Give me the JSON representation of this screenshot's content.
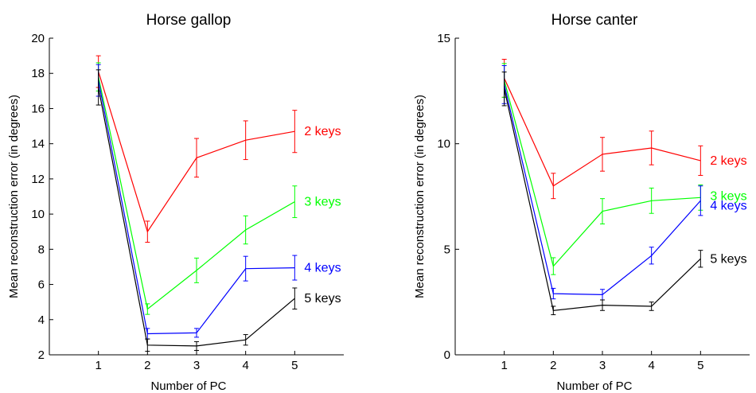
{
  "chart_data": [
    {
      "type": "line",
      "title": "Horse gallop",
      "xlabel": "Number of PC",
      "ylabel": "Mean reconstruction error (in degrees)",
      "x": [
        1,
        2,
        3,
        4,
        5
      ],
      "xlim": [
        0,
        6
      ],
      "ylim": [
        2,
        20
      ],
      "xticks": [
        "1",
        "2",
        "3",
        "4",
        "5"
      ],
      "yticks": [
        "2",
        "4",
        "6",
        "8",
        "10",
        "12",
        "14",
        "16",
        "18",
        "20"
      ],
      "ytick_values": [
        2,
        4,
        6,
        8,
        10,
        12,
        14,
        16,
        18,
        20
      ],
      "grid": false,
      "series": [
        {
          "name": "2 keys",
          "color": "#ff0000",
          "values": [
            18.1,
            9.0,
            13.2,
            14.2,
            14.7
          ],
          "err": [
            0.9,
            0.6,
            1.1,
            1.1,
            1.2
          ]
        },
        {
          "name": "3 keys",
          "color": "#00ff00",
          "values": [
            17.8,
            4.6,
            6.8,
            9.1,
            10.7
          ],
          "err": [
            0.8,
            0.3,
            0.7,
            0.8,
            0.9
          ]
        },
        {
          "name": "4 keys",
          "color": "#0000ff",
          "values": [
            17.6,
            3.2,
            3.25,
            6.9,
            6.95
          ],
          "err": [
            0.9,
            0.3,
            0.25,
            0.7,
            0.7
          ]
        },
        {
          "name": "5 keys",
          "color": "#000000",
          "values": [
            17.2,
            2.55,
            2.5,
            2.85,
            5.2
          ],
          "err": [
            1.0,
            0.35,
            0.25,
            0.3,
            0.6
          ]
        }
      ]
    },
    {
      "type": "line",
      "title": "Horse canter",
      "xlabel": "Number of PC",
      "ylabel": "Mean reconstruction error (in degrees)",
      "x": [
        1,
        2,
        3,
        4,
        5
      ],
      "xlim": [
        0,
        6
      ],
      "ylim": [
        0,
        15
      ],
      "xticks": [
        "1",
        "2",
        "3",
        "4",
        "5"
      ],
      "yticks": [
        "0",
        "5",
        "10",
        "15"
      ],
      "ytick_values": [
        0,
        5,
        10,
        15
      ],
      "grid": false,
      "series": [
        {
          "name": "2 keys",
          "color": "#ff0000",
          "values": [
            13.1,
            8.0,
            9.5,
            9.8,
            9.2
          ],
          "err": [
            0.9,
            0.6,
            0.8,
            0.8,
            0.7
          ]
        },
        {
          "name": "3 keys",
          "color": "#00ff00",
          "values": [
            13.0,
            4.2,
            6.8,
            7.3,
            7.45
          ],
          "err": [
            0.8,
            0.4,
            0.6,
            0.6,
            0.6
          ]
        },
        {
          "name": "4 keys",
          "color": "#0000ff",
          "values": [
            12.8,
            2.9,
            2.85,
            4.7,
            7.3
          ],
          "err": [
            0.9,
            0.25,
            0.25,
            0.4,
            0.7
          ]
        },
        {
          "name": "5 keys",
          "color": "#000000",
          "values": [
            12.6,
            2.1,
            2.35,
            2.3,
            4.55
          ],
          "err": [
            0.8,
            0.2,
            0.25,
            0.2,
            0.4
          ]
        }
      ]
    }
  ]
}
